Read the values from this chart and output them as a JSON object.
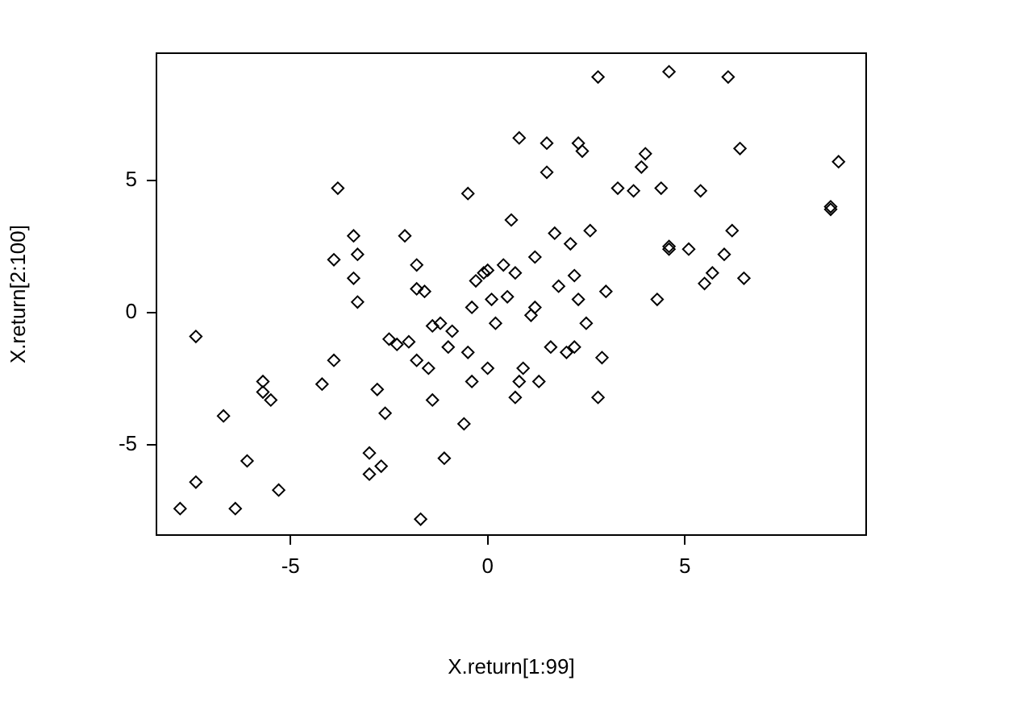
{
  "chart_data": {
    "type": "scatter",
    "xlabel": "X.return[1:99]",
    "ylabel": "X.return[2:100]",
    "xlim": [
      -8.4,
      9.6
    ],
    "ylim": [
      -8.4,
      9.8
    ],
    "xticks": [
      -5,
      0,
      5
    ],
    "yticks": [
      -5,
      0,
      5
    ],
    "marker": "diamond",
    "legend": false,
    "series": [
      {
        "color": "#000000",
        "x": [
          -7.4,
          -7.8,
          -7.4,
          -6.7,
          -6.4,
          -6.1,
          -5.7,
          -5.7,
          -5.5,
          -5.3,
          -4.2,
          -3.9,
          -3.8,
          -3.9,
          -3.4,
          -3.3,
          -3.4,
          -3.3,
          -2.8,
          -3.0,
          -3.0,
          -2.7,
          -2.6,
          -2.5,
          -2.3,
          -2.1,
          -2.0,
          -1.8,
          -1.6,
          -1.8,
          -1.8,
          -1.7,
          -1.5,
          -1.4,
          -1.4,
          -1.2,
          -1.1,
          -0.9,
          -1.0,
          -0.6,
          -0.5,
          -0.5,
          -0.4,
          -0.4,
          -0.3,
          -0.1,
          0.0,
          0.0,
          0.1,
          0.2,
          0.4,
          0.5,
          0.6,
          0.7,
          0.7,
          0.8,
          0.8,
          0.9,
          1.1,
          1.2,
          1.2,
          1.3,
          1.5,
          1.5,
          1.6,
          1.7,
          1.8,
          2.0,
          2.1,
          2.2,
          2.2,
          2.3,
          2.4,
          2.3,
          2.5,
          2.6,
          2.8,
          2.8,
          2.9,
          3.0,
          3.3,
          3.7,
          3.9,
          4.0,
          4.3,
          4.4,
          4.6,
          4.6,
          4.6,
          5.1,
          5.4,
          5.5,
          5.7,
          6.0,
          6.1,
          6.2,
          6.4,
          6.5,
          8.7,
          8.7,
          8.9
        ],
        "values": [
          -0.9,
          -7.4,
          -6.4,
          -3.9,
          -7.4,
          -5.6,
          -2.6,
          -3.0,
          -3.3,
          -6.7,
          -2.7,
          -1.8,
          4.7,
          2.0,
          2.9,
          2.2,
          1.3,
          0.4,
          -2.9,
          -5.3,
          -6.1,
          -5.8,
          -3.8,
          -1.0,
          -1.2,
          2.9,
          -1.1,
          1.8,
          0.8,
          0.9,
          -1.8,
          -7.8,
          -2.1,
          -3.3,
          -0.5,
          -0.4,
          -5.5,
          -0.7,
          -1.3,
          -4.2,
          4.5,
          -1.5,
          -2.6,
          0.2,
          1.2,
          1.5,
          1.6,
          -2.1,
          0.5,
          -0.4,
          1.8,
          0.6,
          3.5,
          -3.2,
          1.5,
          6.6,
          -2.6,
          -2.1,
          -0.1,
          0.2,
          2.1,
          -2.6,
          6.4,
          5.3,
          -1.3,
          3.0,
          1.0,
          -1.5,
          2.6,
          1.4,
          -1.3,
          6.4,
          6.1,
          0.5,
          -0.4,
          3.1,
          -3.2,
          8.9,
          -1.7,
          0.8,
          4.7,
          4.6,
          5.5,
          6.0,
          0.5,
          4.7,
          2.5,
          2.4,
          9.1,
          2.4,
          4.6,
          1.1,
          1.5,
          2.2,
          8.9,
          3.1,
          6.2,
          1.3,
          3.9,
          4.0,
          5.7
        ]
      }
    ]
  }
}
